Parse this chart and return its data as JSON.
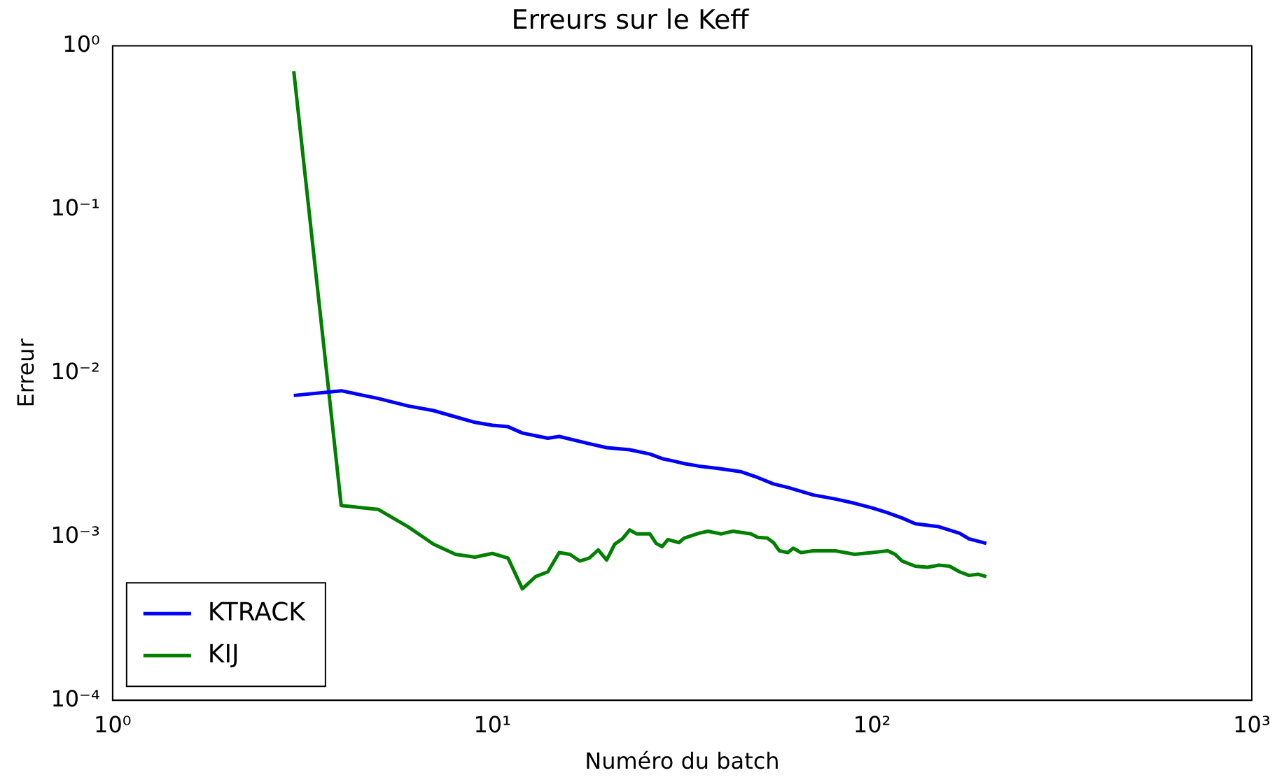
{
  "chart_data": {
    "type": "line",
    "title": "Erreurs sur le Keff",
    "xlabel": "Numéro du batch",
    "ylabel": "Erreur",
    "log": "xy",
    "grid": false,
    "legend": "bottom left",
    "marker": "none",
    "line_style": "solid",
    "xlim": [
      1,
      1000
    ],
    "xticks": [
      {
        "value": 1,
        "label": "10⁰"
      },
      {
        "value": 10,
        "label": "10¹"
      },
      {
        "value": 100,
        "label": "10²"
      },
      {
        "value": 1000,
        "label": "10³"
      }
    ],
    "ylim": [
      0.0001,
      1
    ],
    "yticks": [
      {
        "value": 0.0001,
        "label": "10⁻⁴"
      },
      {
        "value": 0.001,
        "label": "10⁻³"
      },
      {
        "value": 0.01,
        "label": "10⁻²"
      },
      {
        "value": 0.1,
        "label": "10⁻¹"
      },
      {
        "value": 1,
        "label": "10⁰"
      }
    ],
    "series": [
      {
        "name": "KTRACK",
        "color": "#0000ff",
        "x": [
          3,
          4,
          5,
          6,
          7,
          8,
          9,
          10,
          11,
          12,
          14,
          15,
          18,
          20,
          23,
          26,
          28,
          30,
          32,
          35,
          40,
          45,
          50,
          55,
          60,
          70,
          80,
          90,
          100,
          110,
          120,
          130,
          150,
          170,
          180,
          200
        ],
        "values": [
          0.0073,
          0.0078,
          0.007,
          0.0063,
          0.0059,
          0.0054,
          0.005,
          0.0048,
          0.0047,
          0.0043,
          0.004,
          0.0041,
          0.0037,
          0.0035,
          0.0034,
          0.0032,
          0.003,
          0.0029,
          0.0028,
          0.0027,
          0.0026,
          0.0025,
          0.0023,
          0.0021,
          0.002,
          0.0018,
          0.0017,
          0.0016,
          0.0015,
          0.0014,
          0.0013,
          0.0012,
          0.00115,
          0.00105,
          0.00097,
          0.00091
        ]
      },
      {
        "name": "KIJ",
        "color": "#008000",
        "x": [
          3,
          4,
          5,
          6,
          7,
          8,
          9,
          10,
          11,
          12,
          13,
          14,
          15,
          16,
          17,
          18,
          19,
          20,
          21,
          22,
          23,
          24,
          26,
          27,
          28,
          29,
          31,
          32,
          35,
          37,
          40,
          43,
          48,
          50,
          53,
          55,
          57,
          60,
          62,
          65,
          70,
          80,
          90,
          100,
          110,
          115,
          120,
          130,
          140,
          150,
          160,
          170,
          180,
          190,
          200
        ],
        "values": [
          0.7,
          0.00155,
          0.00147,
          0.00115,
          0.0009,
          0.00078,
          0.00075,
          0.00079,
          0.00074,
          0.00048,
          0.00057,
          0.00061,
          0.0008,
          0.00078,
          0.00071,
          0.00074,
          0.00083,
          0.00072,
          0.0009,
          0.00097,
          0.0011,
          0.00104,
          0.00104,
          0.00091,
          0.00087,
          0.00096,
          0.00092,
          0.00098,
          0.00105,
          0.00108,
          0.00104,
          0.00108,
          0.00104,
          0.00099,
          0.00098,
          0.00092,
          0.00082,
          0.0008,
          0.00085,
          0.0008,
          0.00082,
          0.00082,
          0.00078,
          0.0008,
          0.00082,
          0.00078,
          0.00071,
          0.00066,
          0.00065,
          0.00067,
          0.00066,
          0.00061,
          0.00058,
          0.00059,
          0.00057
        ]
      }
    ]
  }
}
